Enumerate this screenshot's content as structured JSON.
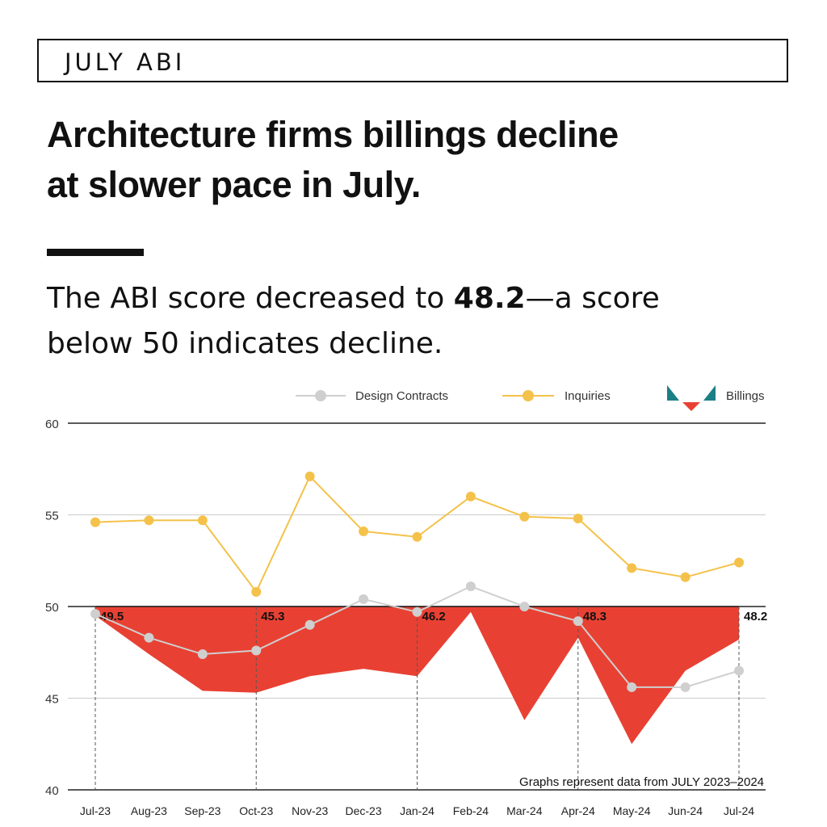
{
  "header": {
    "tag": "JULY ABI",
    "headline_line1": "Architecture firms billings decline",
    "headline_line2": "at slower pace in July.",
    "subhead_prefix": "The ABI score decreased to ",
    "subhead_value": "48.2",
    "subhead_suffix_line1": "—a score",
    "subhead_line2": "below 50 indicates decline."
  },
  "colors": {
    "billings": "#e84133",
    "inquiries": "#f4c24a",
    "design_contracts": "#cfcfcf",
    "legend_teal": "#1b7f86",
    "text": "#111111"
  },
  "chart_data": {
    "type": "line",
    "categories": [
      "Jul-23",
      "Aug-23",
      "Sep-23",
      "Oct-23",
      "Nov-23",
      "Dec-23",
      "Jan-24",
      "Feb-24",
      "Mar-24",
      "Apr-24",
      "May-24",
      "Jun-24",
      "Jul-24"
    ],
    "ylim": [
      40,
      60
    ],
    "yticks": [
      40,
      45,
      50,
      55,
      60
    ],
    "baseline": 50,
    "legend_position": "top-right",
    "series": [
      {
        "name": "Design Contracts",
        "type": "line",
        "values": [
          49.6,
          48.3,
          47.4,
          47.6,
          49.0,
          50.4,
          49.7,
          51.1,
          50.0,
          49.2,
          45.6,
          45.6,
          46.5
        ]
      },
      {
        "name": "Inquiries",
        "type": "line",
        "values": [
          54.6,
          54.7,
          54.7,
          50.8,
          57.1,
          54.1,
          53.8,
          56.0,
          54.9,
          54.8,
          52.1,
          51.6,
          52.4
        ]
      },
      {
        "name": "Billings",
        "type": "area",
        "values": [
          49.5,
          47.4,
          45.4,
          45.3,
          46.2,
          46.6,
          46.2,
          49.7,
          43.8,
          48.3,
          42.5,
          46.5,
          48.2
        ]
      }
    ],
    "annotations": [
      {
        "category_index": 0,
        "label": "49.5"
      },
      {
        "category_index": 3,
        "label": "45.3"
      },
      {
        "category_index": 6,
        "label": "46.2"
      },
      {
        "category_index": 9,
        "label": "48.3"
      },
      {
        "category_index": 12,
        "label": "48.2"
      }
    ],
    "footnote": "Graphs represent data from JULY 2023–2024"
  }
}
